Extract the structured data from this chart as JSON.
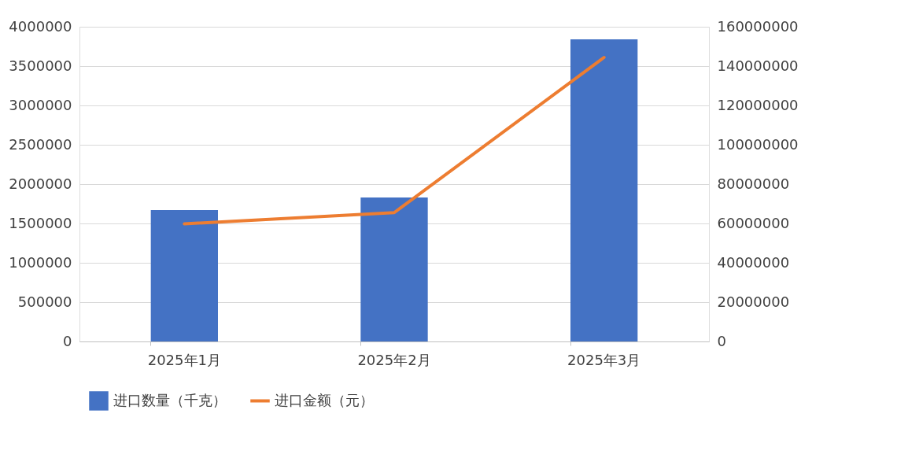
{
  "chart_data": {
    "type": "bar",
    "categories": [
      "2025年1月",
      "2025年2月",
      "2025年3月"
    ],
    "series": [
      {
        "name": "进口数量（千克）",
        "color": "#4472c4",
        "values": [
          1670000,
          1830000,
          3840000
        ]
      },
      {
        "name": "进口金额（元）",
        "type": "line",
        "axis": "y2",
        "color": "#ed7d31",
        "values": [
          59800000,
          65500000,
          144400000
        ]
      }
    ],
    "ylim": [
      0,
      4000000
    ],
    "yticks": [
      0,
      500000,
      1000000,
      1500000,
      2000000,
      2500000,
      3000000,
      3500000,
      4000000
    ],
    "y2lim": [
      0,
      160000000
    ],
    "y2ticks": [
      0,
      20000000,
      40000000,
      60000000,
      80000000,
      100000000,
      120000000,
      140000000,
      160000000
    ],
    "grid": "y",
    "legend": "bottom",
    "line_style": "solid",
    "marker": "none"
  }
}
